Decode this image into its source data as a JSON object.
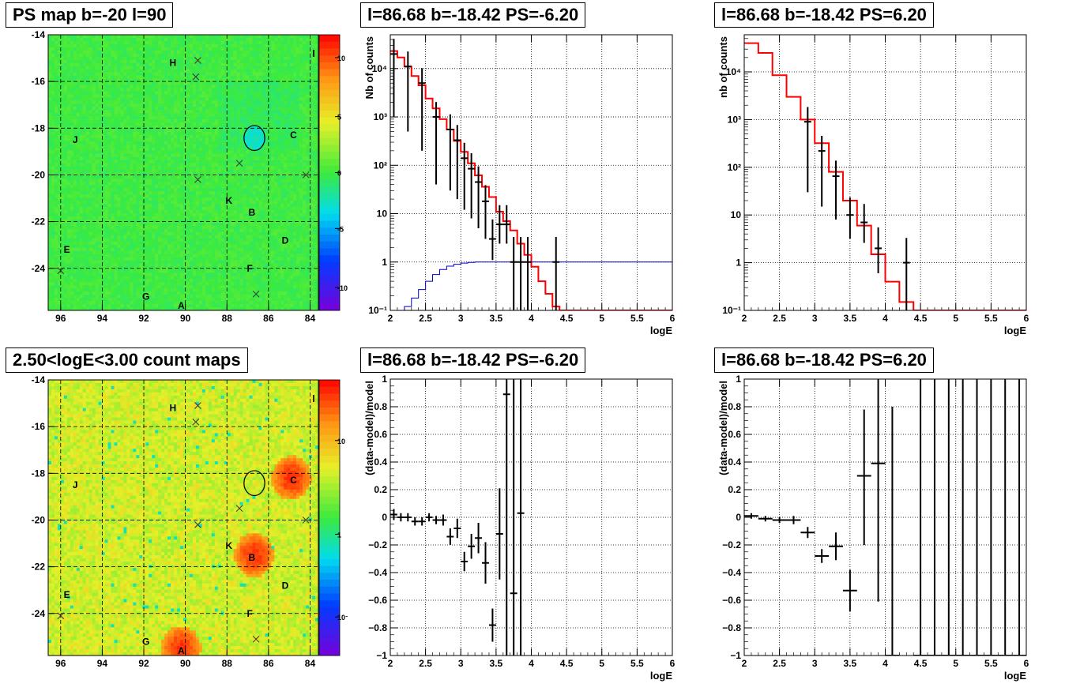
{
  "colors": {
    "model_line": "#ff0000",
    "acceptance_line": "#0000cc",
    "data_points": "#000000",
    "grid": "#000000"
  },
  "panels": {
    "ps_map": {
      "title": "PS map b=-20 l=90",
      "colorbar_ticks": [
        "10",
        "5",
        "0",
        "-5",
        "-10"
      ],
      "background_color": "#44ee44"
    },
    "count_map": {
      "title": "2.50<logE<3.00 count maps",
      "colorbar_ticks": [
        "10",
        "1",
        "10⁻¹"
      ],
      "background_color": "#c8f040"
    },
    "spectrum_left": {
      "title": "l=86.68 b=-18.42 PS=-6.20"
    },
    "spectrum_right": {
      "title": "l=86.68 b=-18.42 PS=6.20"
    },
    "residual_left": {
      "title": "l=86.68 b=-18.42 PS=-6.20"
    },
    "residual_right": {
      "title": "l=86.68 b=-18.42 PS=6.20"
    }
  },
  "chart_data": [
    {
      "type": "heatmap",
      "id": "ps_map",
      "xlabel": "",
      "ylabel": "",
      "x_ticks": [
        "96",
        "94",
        "92",
        "90",
        "88",
        "86",
        "84"
      ],
      "y_ticks": [
        "-14",
        "-16",
        "-18",
        "-20",
        "-22",
        "-24"
      ],
      "xlim": [
        96.6,
        83.6
      ],
      "ylim": [
        -25.8,
        -14
      ],
      "zlim": [
        -12,
        12
      ],
      "grid": true,
      "legend": "none",
      "sources": [
        {
          "label": "H",
          "l": 90.6,
          "b": -15.2
        },
        {
          "label": "J",
          "l": 95.3,
          "b": -18.5
        },
        {
          "label": "C",
          "l": 84.8,
          "b": -18.3
        },
        {
          "label": "K",
          "l": 87.9,
          "b": -21.1
        },
        {
          "label": "B",
          "l": 86.8,
          "b": -21.6
        },
        {
          "label": "D",
          "l": 85.2,
          "b": -22.8
        },
        {
          "label": "E",
          "l": 95.7,
          "b": -23.2
        },
        {
          "label": "F",
          "l": 86.9,
          "b": -24.0
        },
        {
          "label": "G",
          "l": 91.9,
          "b": -25.2
        },
        {
          "label": "A",
          "l": 90.2,
          "b": -25.6
        }
      ],
      "crosses": [
        {
          "l": 89.4,
          "b": -15.1
        },
        {
          "l": 89.5,
          "b": -15.8
        },
        {
          "l": 87.4,
          "b": -19.5
        },
        {
          "l": 89.4,
          "b": -20.2
        },
        {
          "l": 84.2,
          "b": -20.0
        },
        {
          "l": 96.0,
          "b": -24.1
        },
        {
          "l": 86.6,
          "b": -25.1
        }
      ],
      "circle": {
        "l": 86.68,
        "b": -18.42,
        "r": 0.5
      }
    },
    {
      "type": "heatmap",
      "id": "count_map",
      "xlabel": "",
      "ylabel": "",
      "x_ticks": [
        "96",
        "94",
        "92",
        "90",
        "88",
        "86",
        "84"
      ],
      "y_ticks": [
        "-14",
        "-16",
        "-18",
        "-20",
        "-22",
        "-24"
      ],
      "xlim": [
        96.6,
        83.6
      ],
      "ylim": [
        -25.8,
        -14
      ],
      "z_scale": "log",
      "grid": true,
      "legend": "none",
      "hotspots": [
        {
          "label": "C",
          "l": 84.9,
          "b": -18.2
        },
        {
          "label": "B",
          "l": 86.7,
          "b": -21.5
        },
        {
          "label": "A",
          "l": 90.2,
          "b": -25.5
        }
      ]
    },
    {
      "type": "line",
      "id": "spectrum_left",
      "title": "l=86.68 b=-18.42 PS=-6.20",
      "xlabel": "logE",
      "ylabel": "Nb of counts",
      "xlim": [
        2,
        6
      ],
      "ylim": [
        0.1,
        50000
      ],
      "y_scale": "log",
      "x_ticks": [
        "2",
        "2.5",
        "3",
        "3.5",
        "4",
        "4.5",
        "5",
        "5.5",
        "6"
      ],
      "y_ticks": [
        "10⁻¹",
        "1",
        "10",
        "10²",
        "10³",
        "10⁴"
      ],
      "grid": true,
      "series": [
        {
          "style": "step",
          "color": "#ff0000",
          "bin_width": 0.1,
          "x": [
            2.0,
            2.1,
            2.2,
            2.3,
            2.4,
            2.5,
            2.6,
            2.7,
            2.8,
            2.9,
            3.0,
            3.1,
            3.2,
            3.3,
            3.4,
            3.5,
            3.6,
            3.7,
            3.8,
            3.9,
            4.0,
            4.1,
            4.2,
            4.3,
            4.4,
            4.5,
            4.6,
            4.7,
            4.8,
            4.9,
            5.0,
            5.1,
            5.2,
            5.3,
            5.4,
            5.5,
            5.6,
            5.7,
            5.8,
            5.9
          ],
          "values": [
            23000,
            17000,
            11000,
            7000,
            4500,
            2400,
            1500,
            900,
            550,
            320,
            190,
            110,
            62,
            36,
            22,
            11,
            7,
            4.5,
            2.4,
            1.4,
            0.8,
            0.4,
            0.22,
            0.12,
            0.1,
            0.1,
            0.1,
            0.1,
            0.1,
            0.1,
            0.1,
            0.1,
            0.1,
            0.1,
            0.1,
            0.1,
            0.1,
            0.1,
            0.1,
            0.1
          ]
        },
        {
          "style": "step",
          "color": "#0000cc",
          "bin_width": 0.1,
          "x": [
            2.0,
            2.1,
            2.2,
            2.3,
            2.4,
            2.5,
            2.6,
            2.7,
            2.8,
            2.9,
            3.0,
            3.1,
            3.2,
            3.3,
            3.4,
            3.5,
            3.6,
            3.7,
            3.8,
            3.9,
            4.0,
            4.1,
            4.2,
            4.3,
            4.4,
            4.5,
            4.6,
            4.7,
            4.8,
            4.9,
            5.0,
            5.1,
            5.2,
            5.3,
            5.4,
            5.5,
            5.6,
            5.7,
            5.8,
            5.9
          ],
          "values": [
            0.07,
            0.09,
            0.12,
            0.18,
            0.27,
            0.4,
            0.55,
            0.7,
            0.82,
            0.9,
            0.95,
            0.98,
            1,
            1,
            1,
            1,
            1,
            1,
            1,
            1,
            1,
            1,
            1,
            1,
            1,
            1,
            1,
            1,
            1,
            1,
            1,
            1,
            1,
            1,
            1,
            1,
            1,
            1,
            1,
            1
          ]
        },
        {
          "style": "errorbar",
          "color": "#000000",
          "x": [
            2.05,
            2.25,
            2.45,
            2.65,
            2.85,
            2.95,
            3.05,
            3.15,
            3.25,
            3.35,
            3.45,
            3.55,
            3.65,
            3.75,
            3.85,
            3.95,
            4.35
          ],
          "values": [
            20000,
            11000,
            5000,
            1000,
            550,
            330,
            140,
            85,
            45,
            18,
            3,
            6,
            6,
            1,
            1,
            1,
            1
          ],
          "err_low": [
            19000,
            10500,
            4800,
            960,
            520,
            310,
            128,
            77,
            40,
            15,
            1.9,
            3.6,
            3.6,
            0.9,
            0.9,
            0.9,
            0.9
          ],
          "err_high": [
            21000,
            11500,
            5200,
            1040,
            580,
            350,
            152,
            93,
            50,
            21,
            4.6,
            9,
            9,
            2.3,
            2.3,
            2.3,
            2.3
          ]
        }
      ]
    },
    {
      "type": "line",
      "id": "spectrum_right",
      "title": "l=86.68 b=-18.42 PS=6.20",
      "xlabel": "logE",
      "ylabel": "nb of counts",
      "xlim": [
        2,
        6
      ],
      "ylim": [
        0.1,
        60000
      ],
      "y_scale": "log",
      "x_ticks": [
        "2",
        "2.5",
        "3",
        "3.5",
        "4",
        "4.5",
        "5",
        "5.5",
        "6"
      ],
      "y_ticks": [
        "10⁻¹",
        "1",
        "10",
        "10²",
        "10³",
        "10⁴"
      ],
      "grid": true,
      "series": [
        {
          "style": "step",
          "color": "#ff0000",
          "bin_width": 0.2,
          "x": [
            2.0,
            2.2,
            2.4,
            2.6,
            2.8,
            3.0,
            3.2,
            3.4,
            3.6,
            3.8,
            4.0,
            4.2,
            4.4,
            4.6,
            4.8,
            5.0,
            5.2,
            5.4,
            5.6,
            5.8
          ],
          "values": [
            40000,
            25000,
            8500,
            3000,
            1000,
            320,
            80,
            20,
            6,
            1.5,
            0.4,
            0.15,
            0.1,
            0.1,
            0.1,
            0.1,
            0.1,
            0.1,
            0.1,
            0.1
          ]
        },
        {
          "style": "errorbar",
          "color": "#000000",
          "x": [
            2.9,
            3.1,
            3.3,
            3.5,
            3.7,
            3.9,
            4.3
          ],
          "values": [
            900,
            220,
            65,
            10,
            7,
            2,
            1
          ],
          "err_low": [
            870,
            205,
            57,
            6.8,
            4.4,
            1.4,
            0.9
          ],
          "err_high": [
            930,
            235,
            73,
            13.5,
            10,
            3.5,
            2.3
          ]
        }
      ]
    },
    {
      "type": "scatter",
      "id": "residual_left",
      "title": "l=86.68 b=-18.42 PS=-6.20",
      "xlabel": "logE",
      "ylabel": "(data-model)/model",
      "xlim": [
        2,
        6
      ],
      "ylim": [
        -1,
        1
      ],
      "x_ticks": [
        "2",
        "2.5",
        "3",
        "3.5",
        "4",
        "4.5",
        "5",
        "5.5",
        "6"
      ],
      "y_ticks": [
        "−1",
        "−0.8",
        "−0.6",
        "−0.4",
        "−0.2",
        "0",
        "0.2",
        "0.4",
        "0.6",
        "0.8",
        "1"
      ],
      "grid": true,
      "series": [
        {
          "style": "errorbar",
          "color": "#000000",
          "x": [
            2.05,
            2.15,
            2.25,
            2.35,
            2.45,
            2.55,
            2.65,
            2.75,
            2.85,
            2.95,
            3.05,
            3.15,
            3.25,
            3.35,
            3.45,
            3.55,
            3.65,
            3.75,
            3.85
          ],
          "values": [
            0.02,
            0,
            0,
            -0.03,
            -0.03,
            0,
            -0.02,
            -0.02,
            -0.14,
            -0.08,
            -0.32,
            -0.21,
            -0.15,
            -0.33,
            -0.78,
            -0.12,
            0.89,
            -0.55,
            0.03
          ],
          "err_low": [
            0.04,
            0.03,
            0.03,
            0.03,
            0.03,
            0.03,
            0.03,
            0.04,
            0.06,
            0.07,
            0.07,
            0.09,
            0.11,
            0.15,
            0.12,
            0.33,
            1.9,
            0.5,
            1.1
          ],
          "err_high": [
            0.04,
            0.03,
            0.03,
            0.03,
            0.03,
            0.03,
            0.03,
            0.04,
            0.06,
            0.07,
            0.07,
            0.09,
            0.11,
            0.15,
            0.12,
            0.33,
            0.5,
            1.6,
            1.2
          ]
        }
      ]
    },
    {
      "type": "scatter",
      "id": "residual_right",
      "title": "l=86.68 b=-18.42 PS=6.20",
      "xlabel": "logE",
      "ylabel": "(data-model)/model",
      "xlim": [
        2,
        6
      ],
      "ylim": [
        -1,
        1
      ],
      "x_ticks": [
        "2",
        "2.5",
        "3",
        "3.5",
        "4",
        "4.5",
        "5",
        "5.5",
        "6"
      ],
      "y_ticks": [
        "−1",
        "−0.8",
        "−0.6",
        "−0.4",
        "−0.2",
        "0",
        "0.2",
        "0.4",
        "0.6",
        "0.8",
        "1"
      ],
      "grid": true,
      "series": [
        {
          "style": "errorbar",
          "color": "#000000",
          "bin_width": 0.2,
          "x": [
            2.1,
            2.3,
            2.5,
            2.7,
            2.9,
            3.1,
            3.3,
            3.5,
            3.7,
            3.9,
            4.1,
            4.5,
            4.7,
            4.9,
            5.1,
            5.3,
            5.5,
            5.7,
            5.9
          ],
          "values": [
            0.01,
            -0.01,
            -0.02,
            -0.02,
            -0.11,
            -0.28,
            -0.21,
            -0.53,
            0.3,
            0.39,
            -1.0,
            -1.0,
            -1.0,
            -1.0,
            -1.0,
            -1.0,
            -1.0,
            -1.0,
            -1.0
          ],
          "err_low": [
            0.02,
            0.02,
            0.02,
            0.03,
            0.04,
            0.05,
            0.1,
            0.15,
            0.5,
            1.0,
            0.0,
            0,
            0,
            0,
            0,
            0,
            0,
            0,
            0
          ],
          "err_high": [
            0.02,
            0.02,
            0.02,
            0.03,
            0.04,
            0.05,
            0.1,
            0.15,
            0.48,
            0.61,
            1.8,
            2,
            2,
            2,
            2,
            2,
            2,
            2,
            2
          ]
        }
      ]
    }
  ]
}
